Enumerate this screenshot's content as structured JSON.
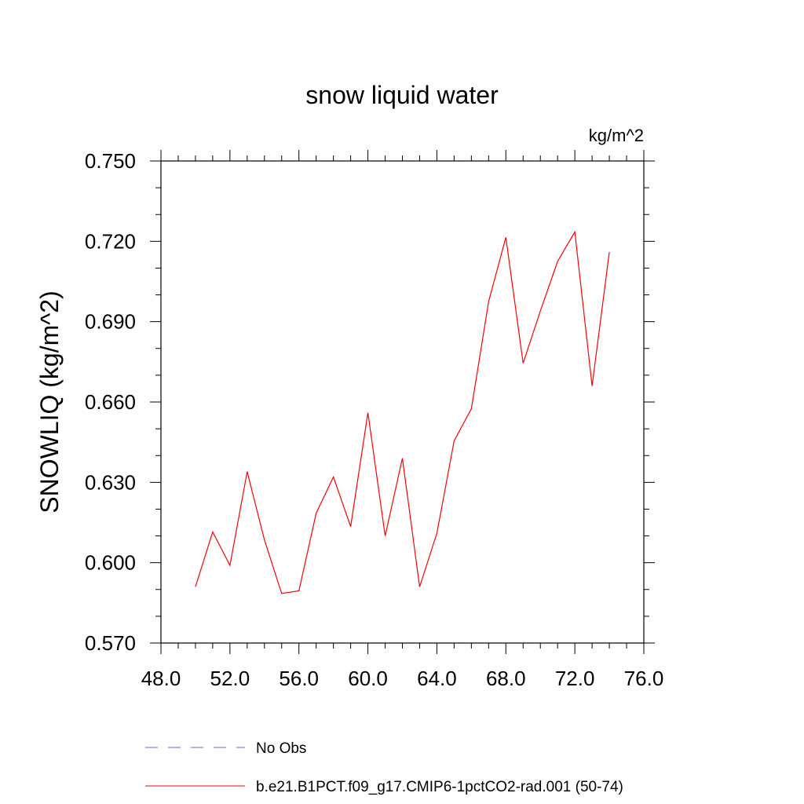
{
  "chart_data": {
    "type": "line",
    "title": "snow liquid water",
    "units_label": "kg/m^2",
    "ylabel": "SNOWLIQ  (kg/m^2)",
    "xlabel": "",
    "xlim": [
      48,
      76
    ],
    "ylim": [
      0.57,
      0.75
    ],
    "x_ticks": [
      48,
      52,
      56,
      60,
      64,
      68,
      72,
      76
    ],
    "x_tick_labels": [
      "48.0",
      "52.0",
      "56.0",
      "60.0",
      "64.0",
      "68.0",
      "72.0",
      "76.0"
    ],
    "y_ticks": [
      0.57,
      0.6,
      0.63,
      0.66,
      0.69,
      0.72,
      0.75
    ],
    "y_tick_labels": [
      "0.570",
      "0.600",
      "0.630",
      "0.660",
      "0.690",
      "0.720",
      "0.750"
    ],
    "grid": false,
    "legend_position": "bottom",
    "series": [
      {
        "name": "b.e21.B1PCT.f09_g17.CMIP6-1pctCO2-rad.001 (50-74)",
        "color": "#ff0000",
        "dash": "solid",
        "x": [
          50,
          51,
          52,
          53,
          54,
          55,
          56,
          57,
          58,
          59,
          60,
          61,
          62,
          63,
          64,
          65,
          66,
          67,
          68,
          69,
          70,
          71,
          72,
          73,
          74
        ],
        "y": [
          0.591,
          0.6115,
          0.599,
          0.634,
          0.6085,
          0.5885,
          0.5895,
          0.6185,
          0.632,
          0.6135,
          0.656,
          0.61,
          0.639,
          0.591,
          0.611,
          0.6455,
          0.6575,
          0.6975,
          0.7215,
          0.6745,
          0.694,
          0.7125,
          0.7235,
          0.666,
          0.716
        ]
      }
    ],
    "legend": [
      {
        "label": "No Obs",
        "color": "#6666cc",
        "dash": "dashed"
      },
      {
        "label": "b.e21.B1PCT.f09_g17.CMIP6-1pctCO2-rad.001 (50-74)",
        "color": "#ff0000",
        "dash": "solid"
      }
    ]
  }
}
